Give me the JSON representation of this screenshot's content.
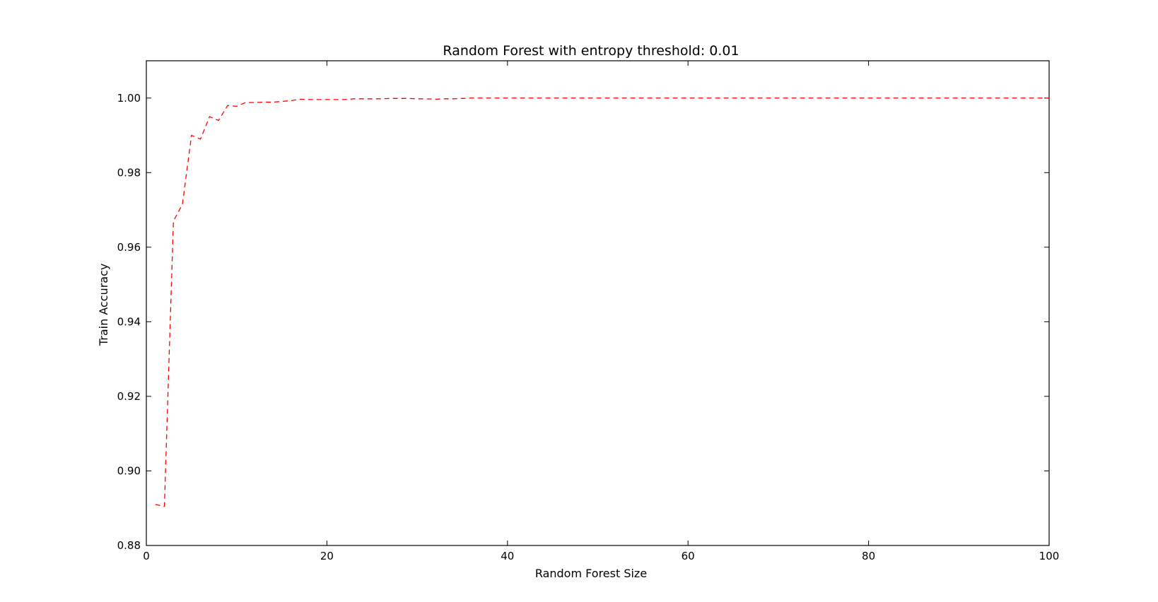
{
  "chart_data": {
    "type": "line",
    "title": "Random Forest with entropy threshold: 0.01",
    "xlabel": "Random Forest Size",
    "ylabel": "Train Accuracy",
    "xlim": [
      0,
      100
    ],
    "ylim": [
      0.88,
      1.01
    ],
    "x_ticks": [
      "0",
      "20",
      "40",
      "60",
      "80",
      "100"
    ],
    "y_ticks": [
      "0.88",
      "0.90",
      "0.92",
      "0.94",
      "0.96",
      "0.98",
      "1.00"
    ],
    "x_tick_values": [
      0,
      20,
      40,
      60,
      80,
      100
    ],
    "y_tick_values": [
      0.88,
      0.9,
      0.92,
      0.94,
      0.96,
      0.98,
      1.0
    ],
    "grid": false,
    "series": [
      {
        "line_style": "dashed",
        "color": "#ff0000",
        "x": [
          1,
          2,
          3,
          4,
          5,
          6,
          7,
          8,
          9,
          10,
          11,
          12,
          13,
          14,
          15,
          16,
          17,
          18,
          19,
          20,
          21,
          22,
          23,
          24,
          25,
          26,
          27,
          28,
          29,
          30,
          31,
          32,
          33,
          34,
          35,
          36,
          37,
          38,
          39,
          40,
          41,
          42,
          43,
          44,
          45,
          46,
          47,
          48,
          49,
          50,
          51,
          52,
          53,
          54,
          55,
          56,
          57,
          58,
          59,
          60,
          61,
          62,
          63,
          64,
          65,
          66,
          67,
          68,
          69,
          70,
          71,
          72,
          73,
          74,
          75,
          76,
          77,
          78,
          79,
          80,
          81,
          82,
          83,
          84,
          85,
          86,
          87,
          88,
          89,
          90,
          91,
          92,
          93,
          94,
          95,
          96,
          97,
          98,
          99,
          100
        ],
        "y": [
          0.891,
          0.8905,
          0.967,
          0.9715,
          0.99,
          0.989,
          0.995,
          0.994,
          0.998,
          0.9978,
          0.9988,
          0.9988,
          0.9989,
          0.9989,
          0.9991,
          0.9993,
          0.9997,
          0.9996,
          0.9996,
          0.9996,
          0.9996,
          0.9996,
          0.9998,
          0.9998,
          0.9998,
          0.9998,
          0.9999,
          0.9999,
          0.9999,
          0.9998,
          0.9998,
          0.9997,
          0.9998,
          0.9998,
          0.9999,
          1.0,
          1.0,
          1.0,
          1.0,
          1.0,
          1.0,
          1.0,
          1.0,
          1.0,
          1.0,
          1.0,
          1.0,
          1.0,
          1.0,
          1.0,
          1.0,
          1.0,
          1.0,
          1.0,
          1.0,
          1.0,
          1.0,
          1.0,
          1.0,
          1.0,
          1.0,
          1.0,
          1.0,
          1.0,
          1.0,
          1.0,
          1.0,
          1.0,
          1.0,
          1.0,
          1.0,
          1.0,
          1.0,
          1.0,
          1.0,
          1.0,
          1.0,
          1.0,
          1.0,
          1.0,
          1.0,
          1.0,
          1.0,
          1.0,
          1.0,
          1.0,
          1.0,
          1.0,
          1.0,
          1.0,
          1.0,
          1.0,
          1.0,
          1.0,
          1.0,
          1.0,
          1.0,
          1.0,
          1.0,
          1.0
        ]
      }
    ]
  }
}
